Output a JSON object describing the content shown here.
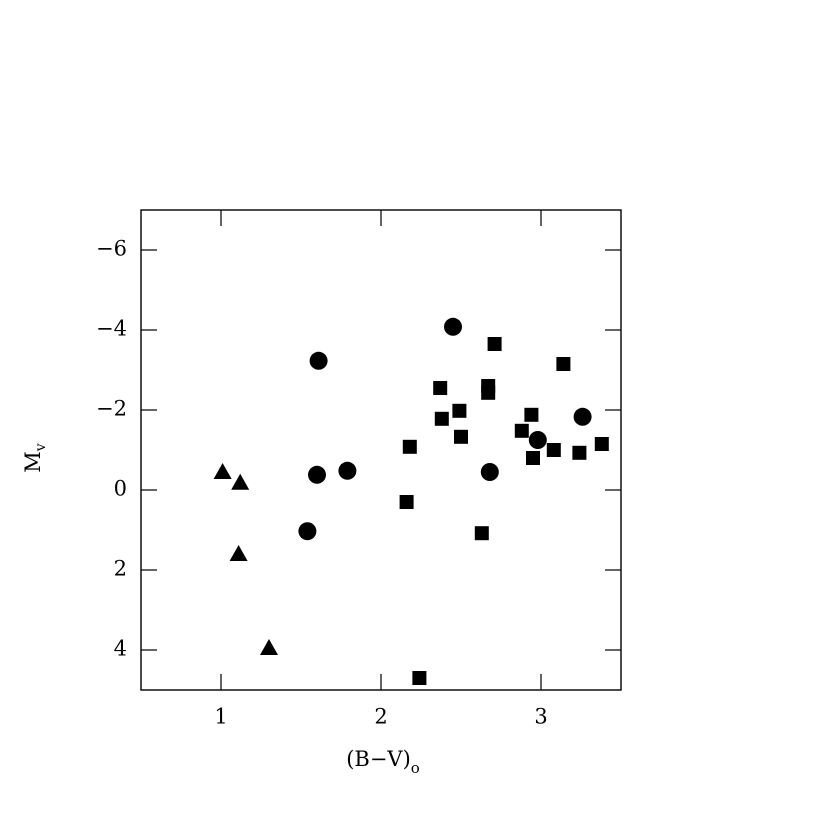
{
  "chart_data": {
    "type": "scatter",
    "xlabel": {
      "text": "(B−V)",
      "sub": "o"
    },
    "ylabel": {
      "text": "M",
      "sub": "v"
    },
    "xlim": [
      0.5,
      3.5
    ],
    "xticks": [
      1,
      2,
      3
    ],
    "ylim": [
      5,
      -7
    ],
    "yticks": [
      {
        "value": -6,
        "label": "−6"
      },
      {
        "value": -4,
        "label": "−4"
      },
      {
        "value": -2,
        "label": "−2"
      },
      0,
      2,
      4
    ],
    "series": [
      {
        "marker": "triangle",
        "color": "#000000",
        "x": [
          1.01,
          1.12,
          1.11,
          1.3
        ],
        "values": [
          -0.45,
          -0.18,
          1.6,
          3.95
        ]
      },
      {
        "marker": "circle",
        "color": "#000000",
        "x": [
          1.61,
          2.45,
          1.6,
          1.79,
          1.54,
          2.68,
          2.98,
          3.26
        ],
        "values": [
          -3.23,
          -4.08,
          -0.38,
          -0.48,
          1.03,
          -0.45,
          -1.25,
          -1.83
        ]
      },
      {
        "marker": "square",
        "color": "#000000",
        "x": [
          2.71,
          3.14,
          2.37,
          2.67,
          2.67,
          2.49,
          2.94,
          2.38,
          2.5,
          2.88,
          2.18,
          3.08,
          3.24,
          3.38,
          2.95,
          2.16,
          2.63,
          2.24
        ],
        "values": [
          -3.65,
          -3.15,
          -2.55,
          -2.6,
          -2.43,
          -1.98,
          -1.88,
          -1.78,
          -1.33,
          -1.48,
          -1.08,
          -1.0,
          -0.93,
          -1.15,
          -0.8,
          0.3,
          1.08,
          4.7
        ]
      }
    ]
  }
}
